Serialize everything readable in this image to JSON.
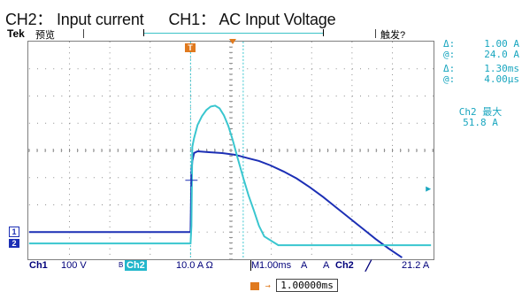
{
  "caption": {
    "ch2": "CH2： Input current",
    "ch1": "CH1： AC Input Voltage"
  },
  "topbar": {
    "brand": "Tek",
    "mode": "预览",
    "trigger_status": "触发?"
  },
  "cursor": {
    "delta_label": "Δ:",
    "delta_value": "1.00 A",
    "at_label": "@:",
    "at_value": "24.0 A",
    "delta2_label": "Δ:",
    "delta2_value": "1.30ms",
    "at2_label": "@:",
    "at2_value": "4.00µs"
  },
  "measure": {
    "label": "Ch2 最大",
    "value": "51.8 A"
  },
  "channel_markers": {
    "ch1": "1",
    "ch2": "2"
  },
  "status": {
    "ch1_label": "Ch1",
    "ch1_scale": "100 V",
    "bw": "B",
    "ch2_label": "Ch2",
    "ch2_scale": "10.0 A Ω",
    "time_label": "M",
    "time_scale": "1.00ms",
    "trig_mode": "A",
    "trig_src": "Ch2",
    "trig_slope": "╱",
    "trig_level": "21.2 A"
  },
  "horizontal_position": "1.00000ms",
  "colors": {
    "ch1": "#1c2fb5",
    "ch2": "#39c6cf",
    "grid": "#8a8a8a",
    "trigger": "#e07a1f"
  }
}
